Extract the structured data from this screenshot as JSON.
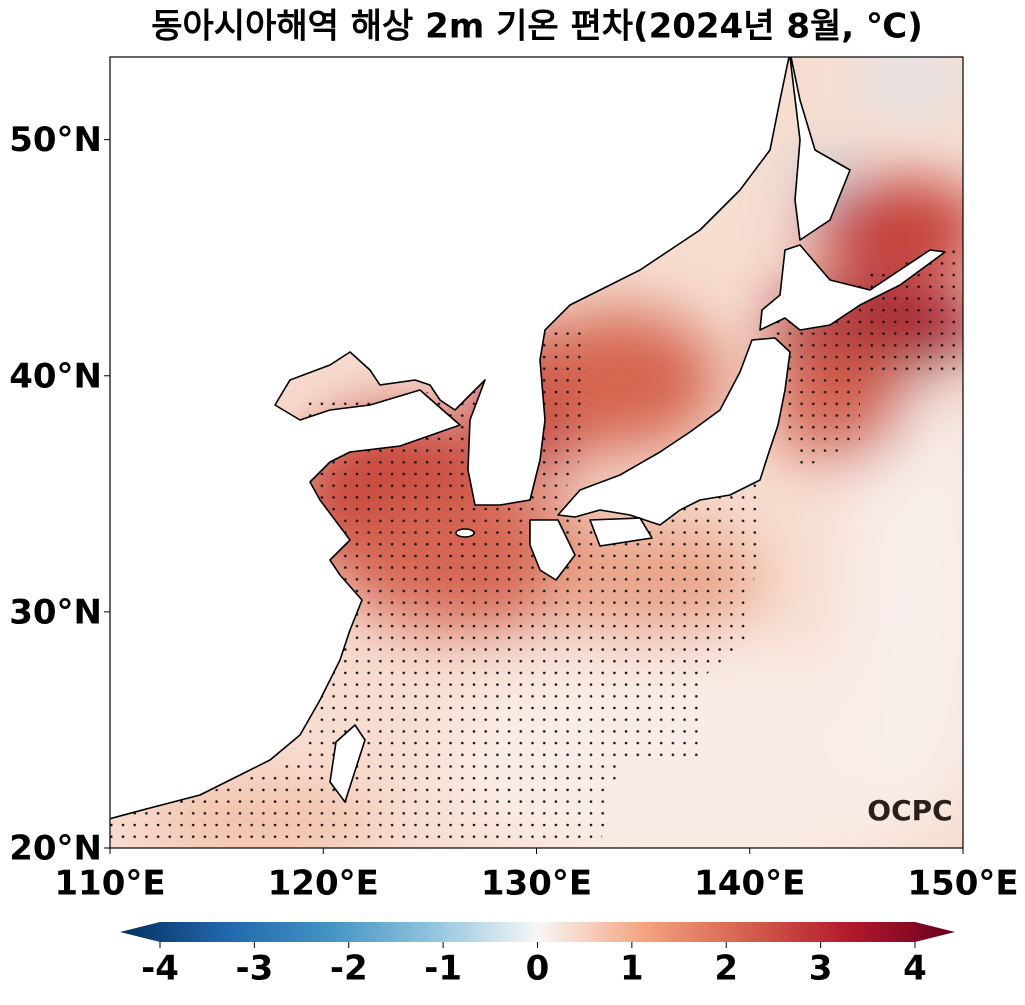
{
  "title": "동아시아해역 해상 2m 기온 편차(2024년 8월, ℃)",
  "map": {
    "type": "map",
    "xlim": [
      110,
      150
    ],
    "ylim": [
      20,
      53.5
    ],
    "xticks": [
      {
        "value": 110,
        "label": "110°E"
      },
      {
        "value": 120,
        "label": "120°E"
      },
      {
        "value": 130,
        "label": "130°E"
      },
      {
        "value": 140,
        "label": "140°E"
      },
      {
        "value": 150,
        "label": "150°E"
      }
    ],
    "yticks": [
      {
        "value": 20,
        "label": "20°N"
      },
      {
        "value": 30,
        "label": "30°N"
      },
      {
        "value": 40,
        "label": "40°N"
      },
      {
        "value": 50,
        "label": "50°N"
      }
    ]
  },
  "colorbar": {
    "lim": [
      -4,
      4
    ],
    "ticks": [
      -4,
      -3,
      -2,
      -1,
      0,
      1,
      2,
      3,
      4
    ]
  },
  "logo": "OCPC"
}
